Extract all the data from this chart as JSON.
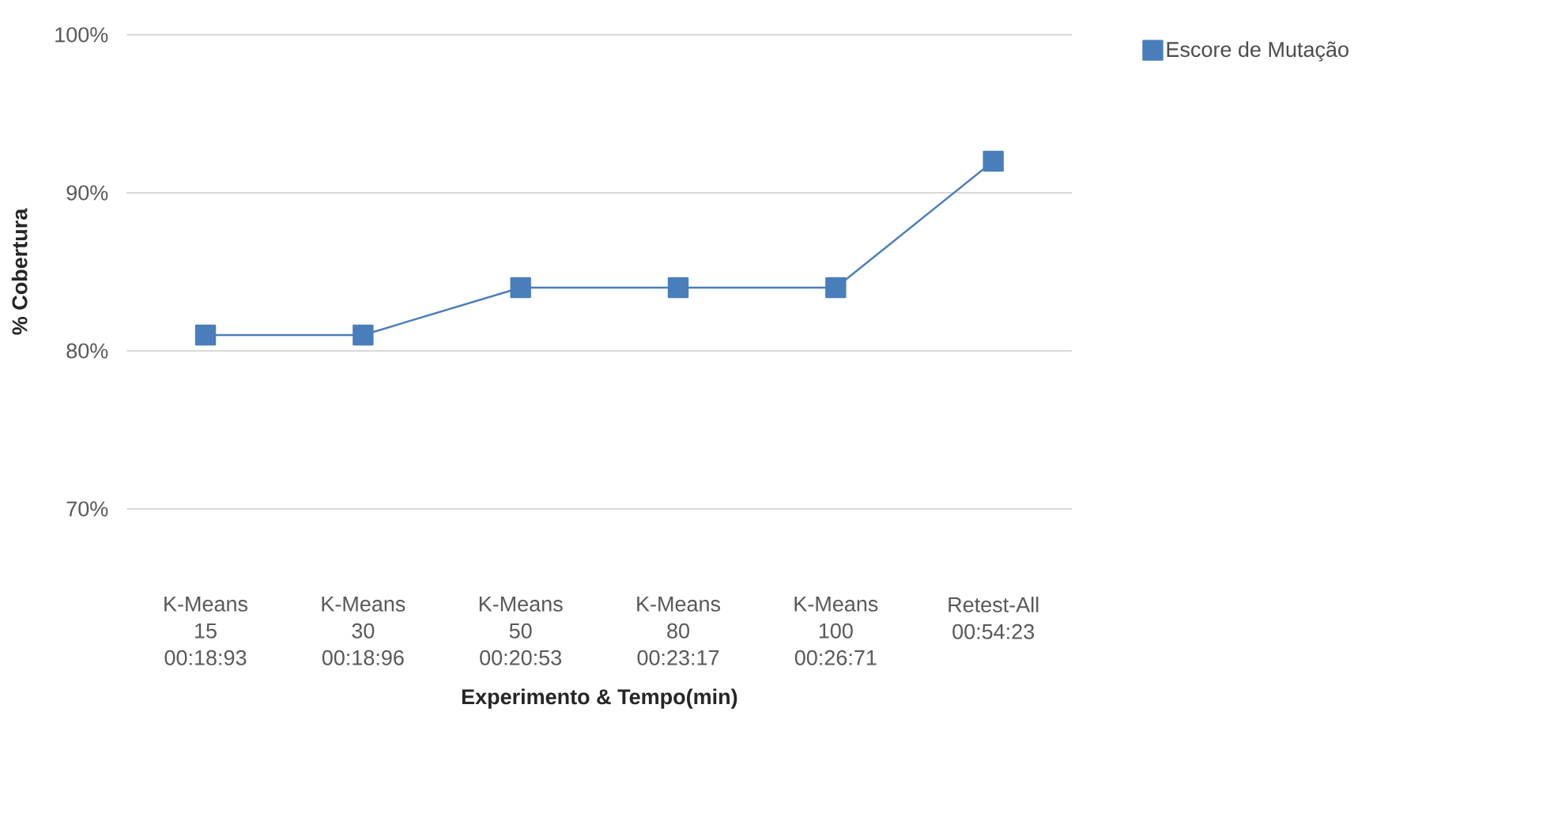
{
  "chart_data": {
    "type": "line",
    "xlabel": "Experimento & Tempo(min)",
    "ylabel": "% Cobertura",
    "categories": [
      "K-Means 15 00:18:93",
      "K-Means 30 00:18:96",
      "K-Means 50 00:20:53",
      "K-Means 80 00:23:17",
      "K-Means 100 00:26:71",
      "Retest-All 00:54:23"
    ],
    "series": [
      {
        "name": "Escore de Mutação",
        "color": "#4a7ebb",
        "values": [
          81,
          81,
          84,
          84,
          84,
          92
        ]
      }
    ],
    "ylim": [
      70,
      100
    ],
    "yticks": [
      {
        "value": 70,
        "label": "70%"
      },
      {
        "value": 80,
        "label": "80%"
      },
      {
        "value": 90,
        "label": "90%"
      },
      {
        "value": 100,
        "label": "100%"
      }
    ],
    "grid": "y",
    "legend": "top right",
    "marker": "square",
    "line_style": "solid"
  }
}
